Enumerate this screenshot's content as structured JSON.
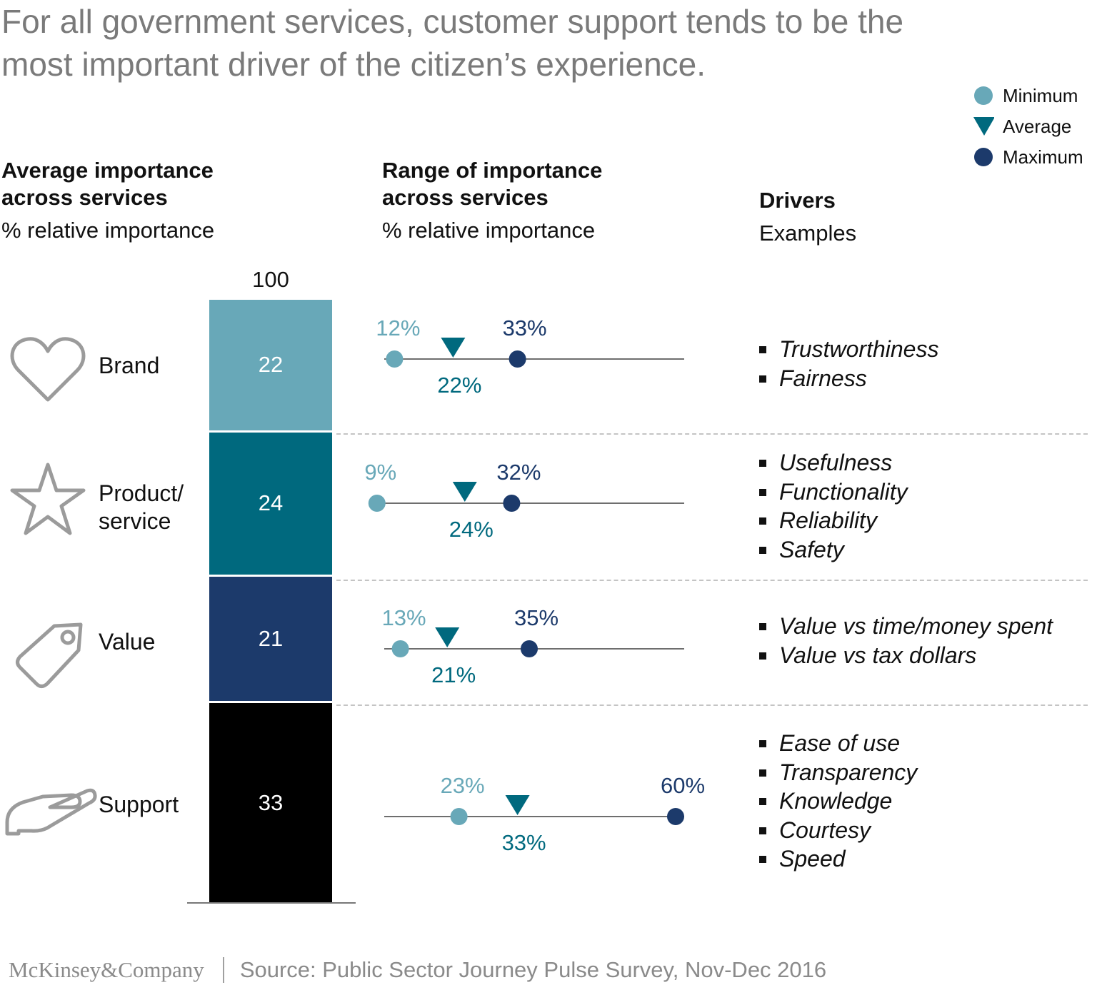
{
  "title_lines": [
    "For all government services, customer support tends to be the",
    "most important driver of the citizen’s experience."
  ],
  "legend": {
    "items": [
      {
        "label": "Minimum",
        "shape": "circle",
        "color": "#68a8b8"
      },
      {
        "label": "Average",
        "shape": "triangle-down",
        "color": "#00697e"
      },
      {
        "label": "Maximum",
        "shape": "circle",
        "color": "#1c3a6b"
      }
    ]
  },
  "headers": {
    "avg": {
      "line1": "Average importance",
      "line2": "across services",
      "sub": "% relative importance"
    },
    "range": {
      "line1": "Range of importance",
      "line2": "across services",
      "sub": "% relative importance"
    },
    "drivers": {
      "title": "Drivers",
      "sub": "Examples"
    }
  },
  "total_label": "100",
  "categories": [
    {
      "icon": "heart-icon",
      "label_lines": [
        "Brand"
      ]
    },
    {
      "icon": "star-icon",
      "label_lines": [
        "Product/",
        "service"
      ]
    },
    {
      "icon": "price-tag-icon",
      "label_lines": [
        "Value"
      ]
    },
    {
      "icon": "helping-hand-icon",
      "label_lines": [
        "Support"
      ]
    }
  ],
  "drivers": [
    [
      "Trustworthiness",
      "Fairness"
    ],
    [
      "Usefulness",
      "Functionality",
      "Reliability",
      "Safety"
    ],
    [
      "Value vs time/money spent",
      "Value vs tax dollars"
    ],
    [
      "Ease of use",
      "Transparency",
      "Knowledge",
      "Courtesy",
      "Speed"
    ]
  ],
  "chart_data": [
    {
      "type": "bar",
      "subtype": "stacked-100",
      "title": "Average importance across services",
      "ylabel": "% relative importance",
      "total": 100,
      "categories": [
        "Brand",
        "Product/service",
        "Value",
        "Support"
      ],
      "values": [
        22,
        24,
        21,
        33
      ],
      "colors": [
        "#68a8b8",
        "#00697e",
        "#1c3a6b",
        "#000000"
      ]
    },
    {
      "type": "scatter",
      "subtype": "range",
      "title": "Range of importance across services",
      "xlabel": "% relative importance",
      "categories": [
        "Brand",
        "Product/service",
        "Value",
        "Support"
      ],
      "series": [
        {
          "name": "Minimum",
          "values": [
            12,
            9,
            13,
            23
          ],
          "labels": [
            "12%",
            "9%",
            "13%",
            "23%"
          ],
          "color": "#68a8b8"
        },
        {
          "name": "Average",
          "values": [
            22,
            24,
            21,
            33
          ],
          "labels": [
            "22%",
            "24%",
            "21%",
            "33%"
          ],
          "color": "#00697e"
        },
        {
          "name": "Maximum",
          "values": [
            33,
            32,
            35,
            60
          ],
          "labels": [
            "33%",
            "32%",
            "35%",
            "60%"
          ],
          "color": "#1c3a6b"
        }
      ]
    }
  ],
  "footer": {
    "brand": "McKinsey&Company",
    "source": "Source: Public Sector Journey Pulse Survey, Nov-Dec 2016"
  }
}
